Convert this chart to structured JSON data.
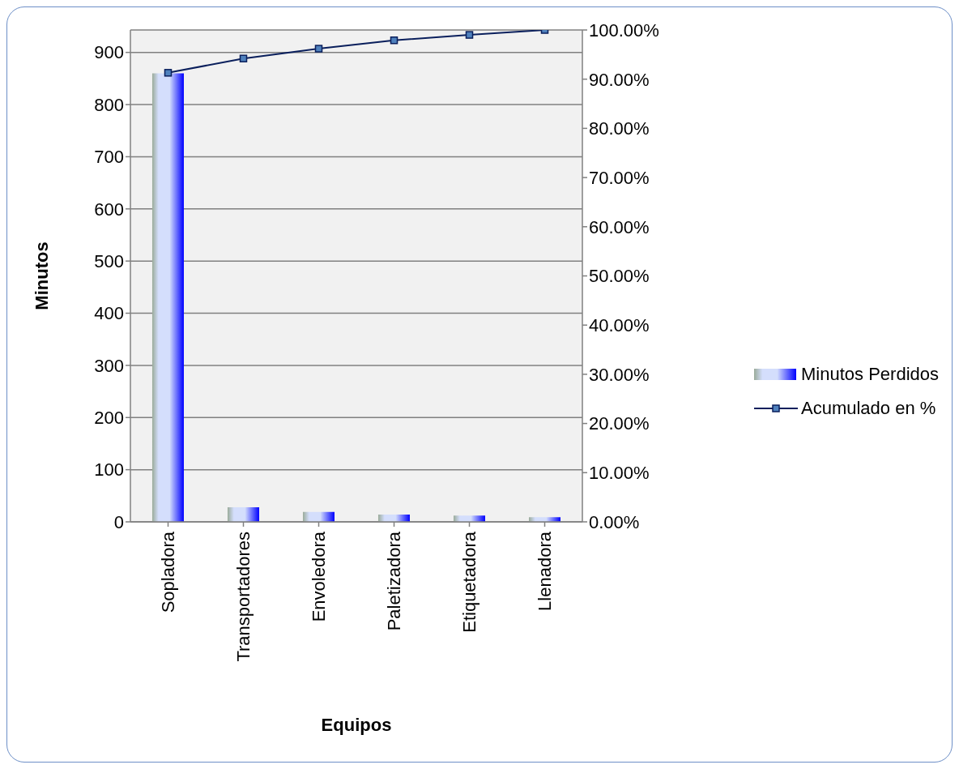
{
  "chart_data": {
    "type": "bar",
    "xlabel": "Equipos",
    "ylabel": "Minutos",
    "categories": [
      "Sopladora",
      "Transportadores",
      "Envoledora",
      "Paletizadora",
      "Etiquetadora",
      "Llenadora"
    ],
    "series": [
      {
        "name": "Minutos Perdidos",
        "color": "#0000ff",
        "values": [
          860,
          28,
          19,
          14,
          12,
          9
        ]
      },
      {
        "name": "Acumulado en %",
        "type": "line",
        "axis": "y2",
        "color": "#0a1f5c",
        "marker": "square",
        "values": [
          91.3,
          94.2,
          96.2,
          97.9,
          99.0,
          100
        ]
      }
    ],
    "ylim": [
      0,
      943
    ],
    "yticks": [
      0,
      100,
      200,
      300,
      400,
      500,
      600,
      700,
      800,
      900
    ],
    "y2lim": [
      0,
      100
    ],
    "y2ticks": [
      {
        "value": 0,
        "label": "0.00%"
      },
      {
        "value": 10,
        "label": "10.00%"
      },
      {
        "value": 20,
        "label": "20.00%"
      },
      {
        "value": 30,
        "label": "30.00%"
      },
      {
        "value": 40,
        "label": "40.00%"
      },
      {
        "value": 50,
        "label": "50.00%"
      },
      {
        "value": 60,
        "label": "60.00%"
      },
      {
        "value": 70,
        "label": "70.00%"
      },
      {
        "value": 80,
        "label": "80.00%"
      },
      {
        "value": 90,
        "label": "90.00%"
      },
      {
        "value": 100,
        "label": "100.00%"
      }
    ],
    "grid": "y",
    "legend": "right"
  }
}
